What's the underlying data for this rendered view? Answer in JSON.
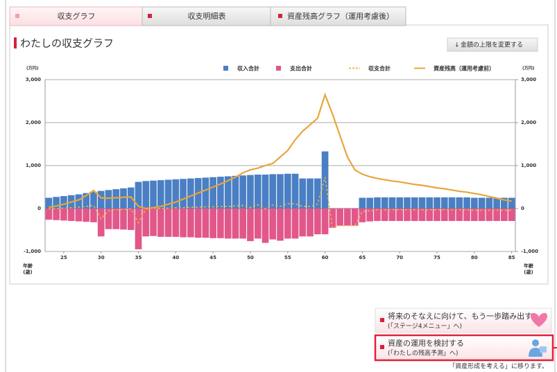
{
  "tabs": [
    {
      "label": "収支グラフ"
    },
    {
      "label": "収支明細表"
    },
    {
      "label": "資産残高グラフ（運用考慮後）"
    }
  ],
  "section_title": "わたしの収支グラフ",
  "button": "金額の上限を変更する",
  "chart_data": {
    "type": "combo",
    "y_label": "(万円)",
    "y2_label": "(万円)",
    "x_label": "年齢\n(歳)",
    "x": [
      23,
      24,
      25,
      26,
      27,
      28,
      29,
      30,
      31,
      32,
      33,
      34,
      35,
      36,
      37,
      38,
      39,
      40,
      41,
      42,
      43,
      44,
      45,
      46,
      47,
      48,
      49,
      50,
      51,
      52,
      53,
      54,
      55,
      56,
      57,
      58,
      59,
      60,
      61,
      62,
      63,
      64,
      65,
      66,
      67,
      68,
      69,
      70,
      71,
      72,
      73,
      74,
      75,
      76,
      77,
      78,
      79,
      80,
      81,
      82,
      83,
      84,
      85
    ],
    "xlim": [
      22.5,
      85.5
    ],
    "xticks": [
      25,
      30,
      35,
      40,
      45,
      50,
      55,
      60,
      65,
      70,
      75,
      80,
      85
    ],
    "ylim": [
      -1000,
      3000
    ],
    "yticks": [
      {
        "value": -1000,
        "label": "-1,000"
      },
      0,
      {
        "value": 1000,
        "label": "1,000"
      },
      {
        "value": 2000,
        "label": "2,000"
      },
      {
        "value": 3000,
        "label": "3,000"
      }
    ],
    "y2lim": [
      -1000,
      3000
    ],
    "y2ticks": [
      {
        "value": -1000,
        "label": "-1,000"
      },
      0,
      {
        "value": 1000,
        "label": "1,000"
      },
      {
        "value": 2000,
        "label": "2,000"
      },
      {
        "value": 3000,
        "label": "3,000"
      }
    ],
    "grid": true,
    "series": [
      {
        "name": "収入合計",
        "color": "#4a7fc4",
        "style": "bar",
        "values": [
          250,
          270,
          290,
          310,
          330,
          360,
          390,
          410,
          430,
          450,
          470,
          490,
          620,
          640,
          650,
          660,
          670,
          680,
          690,
          700,
          710,
          720,
          730,
          740,
          750,
          760,
          770,
          780,
          790,
          790,
          800,
          800,
          810,
          810,
          700,
          700,
          700,
          1330,
          0,
          0,
          0,
          0,
          250,
          250,
          260,
          260,
          260,
          260,
          260,
          260,
          260,
          260,
          260,
          260,
          260,
          260,
          260,
          250,
          250,
          250,
          250,
          250,
          250
        ]
      },
      {
        "name": "支出合計",
        "color": "#e2578a",
        "style": "bar",
        "values": [
          -260,
          -270,
          -280,
          -290,
          -300,
          -310,
          -320,
          -650,
          -480,
          -480,
          -490,
          -500,
          -950,
          -650,
          -640,
          -660,
          -660,
          -660,
          -670,
          -670,
          -680,
          -680,
          -690,
          -690,
          -700,
          -700,
          -700,
          -760,
          -700,
          -800,
          -720,
          -750,
          -700,
          -700,
          -650,
          -650,
          -600,
          -600,
          -450,
          -400,
          -400,
          -400,
          -320,
          -300,
          -290,
          -290,
          -290,
          -290,
          -290,
          -290,
          -290,
          -290,
          -290,
          -290,
          -290,
          -290,
          -290,
          -290,
          -290,
          -290,
          -290,
          -290,
          -290
        ]
      },
      {
        "name": "収支合計",
        "color": "#f2b43c",
        "style": "dashed",
        "values": [
          -10,
          0,
          10,
          20,
          30,
          50,
          70,
          -240,
          -50,
          -30,
          -20,
          -10,
          -330,
          -10,
          10,
          0,
          10,
          20,
          20,
          30,
          30,
          40,
          40,
          50,
          50,
          60,
          70,
          20,
          90,
          -10,
          80,
          50,
          110,
          110,
          50,
          50,
          100,
          730,
          -450,
          -400,
          -400,
          -400,
          -70,
          -50,
          -30,
          -30,
          -30,
          -30,
          -30,
          -30,
          -30,
          -30,
          -30,
          -30,
          -30,
          -30,
          -30,
          -40,
          -40,
          -40,
          -40,
          -40,
          -40
        ]
      },
      {
        "name": "資産残高（運用考慮前）",
        "color": "#e8a53a",
        "style": "solid",
        "values": [
          30,
          60,
          100,
          150,
          200,
          300,
          420,
          250,
          240,
          250,
          260,
          270,
          50,
          0,
          20,
          50,
          100,
          150,
          220,
          290,
          360,
          430,
          500,
          570,
          650,
          730,
          830,
          900,
          940,
          1000,
          1050,
          1200,
          1350,
          1600,
          1800,
          1950,
          2100,
          2650,
          2200,
          1700,
          1200,
          900,
          800,
          740,
          700,
          670,
          640,
          620,
          590,
          560,
          540,
          510,
          480,
          460,
          430,
          400,
          380,
          350,
          320,
          280,
          240,
          200,
          170
        ]
      }
    ]
  },
  "links": [
    {
      "title": "将来のそなえに向けて、もう一歩踏み出す",
      "sub": "(「ステージ4メニュー」へ)"
    },
    {
      "title": "資産の運用を検討する",
      "sub": "(「わたしの残高予測」へ)"
    }
  ],
  "note": "「資産形成を考える」に移ります。"
}
